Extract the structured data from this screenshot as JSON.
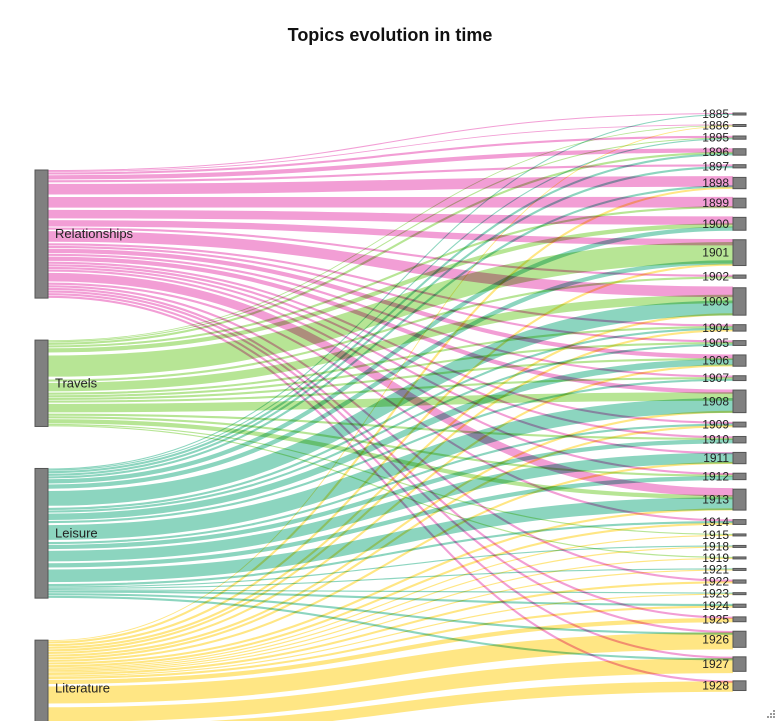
{
  "chart_data": {
    "type": "sankey",
    "title": "Topics evolution in time",
    "sources": [
      {
        "name": "Relationships",
        "color": "#e84fb3"
      },
      {
        "name": "Travels",
        "color": "#7ccf3e"
      },
      {
        "name": "Leisure",
        "color": "#2eb38a"
      },
      {
        "name": "Literature",
        "color": "#ffd21f"
      }
    ],
    "targets": [
      "1885",
      "1886",
      "1895",
      "1896",
      "1897",
      "1898",
      "1899",
      "1900",
      "1901",
      "1902",
      "1903",
      "1904",
      "1905",
      "1906",
      "1907",
      "1908",
      "1909",
      "1910",
      "1911",
      "1912",
      "1913",
      "1914",
      "1915",
      "1918",
      "1919",
      "1921",
      "1922",
      "1923",
      "1924",
      "1925",
      "1926",
      "1927",
      "1928"
    ],
    "links": [
      {
        "source": "Relationships",
        "target": "1885",
        "value": 0.4
      },
      {
        "source": "Relationships",
        "target": "1886",
        "value": 0.4
      },
      {
        "source": "Relationships",
        "target": "1895",
        "value": 1
      },
      {
        "source": "Relationships",
        "target": "1896",
        "value": 2
      },
      {
        "source": "Relationships",
        "target": "1897",
        "value": 1
      },
      {
        "source": "Relationships",
        "target": "1898",
        "value": 5
      },
      {
        "source": "Relationships",
        "target": "1899",
        "value": 5
      },
      {
        "source": "Relationships",
        "target": "1900",
        "value": 4
      },
      {
        "source": "Relationships",
        "target": "1901",
        "value": 3
      },
      {
        "source": "Relationships",
        "target": "1902",
        "value": 1
      },
      {
        "source": "Relationships",
        "target": "1903",
        "value": 5
      },
      {
        "source": "Relationships",
        "target": "1904",
        "value": 1
      },
      {
        "source": "Relationships",
        "target": "1905",
        "value": 1
      },
      {
        "source": "Relationships",
        "target": "1906",
        "value": 2
      },
      {
        "source": "Relationships",
        "target": "1907",
        "value": 1
      },
      {
        "source": "Relationships",
        "target": "1908",
        "value": 2
      },
      {
        "source": "Relationships",
        "target": "1909",
        "value": 1
      },
      {
        "source": "Relationships",
        "target": "1910",
        "value": 1
      },
      {
        "source": "Relationships",
        "target": "1911",
        "value": 1
      },
      {
        "source": "Relationships",
        "target": "1912",
        "value": 1
      },
      {
        "source": "Relationships",
        "target": "1913",
        "value": 4
      },
      {
        "source": "Relationships",
        "target": "1914",
        "value": 1
      },
      {
        "source": "Relationships",
        "target": "1922",
        "value": 1
      },
      {
        "source": "Relationships",
        "target": "1925",
        "value": 1
      },
      {
        "source": "Relationships",
        "target": "1926",
        "value": 1
      },
      {
        "source": "Relationships",
        "target": "1927",
        "value": 1
      },
      {
        "source": "Relationships",
        "target": "1928",
        "value": 1
      },
      {
        "source": "Travels",
        "target": "1886",
        "value": 0.4
      },
      {
        "source": "Travels",
        "target": "1895",
        "value": 0.5
      },
      {
        "source": "Travels",
        "target": "1896",
        "value": 1
      },
      {
        "source": "Travels",
        "target": "1899",
        "value": 1
      },
      {
        "source": "Travels",
        "target": "1900",
        "value": 2
      },
      {
        "source": "Travels",
        "target": "1901",
        "value": 10
      },
      {
        "source": "Travels",
        "target": "1902",
        "value": 1
      },
      {
        "source": "Travels",
        "target": "1903",
        "value": 4
      },
      {
        "source": "Travels",
        "target": "1904",
        "value": 1
      },
      {
        "source": "Travels",
        "target": "1905",
        "value": 1
      },
      {
        "source": "Travels",
        "target": "1906",
        "value": 1
      },
      {
        "source": "Travels",
        "target": "1907",
        "value": 1
      },
      {
        "source": "Travels",
        "target": "1908",
        "value": 4
      },
      {
        "source": "Travels",
        "target": "1910",
        "value": 1
      },
      {
        "source": "Travels",
        "target": "1912",
        "value": 1
      },
      {
        "source": "Travels",
        "target": "1913",
        "value": 2
      },
      {
        "source": "Travels",
        "target": "1915",
        "value": 0.5
      },
      {
        "source": "Travels",
        "target": "1919",
        "value": 0.5
      },
      {
        "source": "Leisure",
        "target": "1885",
        "value": 0.4
      },
      {
        "source": "Leisure",
        "target": "1895",
        "value": 0.5
      },
      {
        "source": "Leisure",
        "target": "1896",
        "value": 1
      },
      {
        "source": "Leisure",
        "target": "1897",
        "value": 1
      },
      {
        "source": "Leisure",
        "target": "1898",
        "value": 1
      },
      {
        "source": "Leisure",
        "target": "1900",
        "value": 2
      },
      {
        "source": "Leisure",
        "target": "1901",
        "value": 2
      },
      {
        "source": "Leisure",
        "target": "1903",
        "value": 7
      },
      {
        "source": "Leisure",
        "target": "1904",
        "value": 1
      },
      {
        "source": "Leisure",
        "target": "1905",
        "value": 1
      },
      {
        "source": "Leisure",
        "target": "1906",
        "value": 3
      },
      {
        "source": "Leisure",
        "target": "1907",
        "value": 1
      },
      {
        "source": "Leisure",
        "target": "1908",
        "value": 7
      },
      {
        "source": "Leisure",
        "target": "1909",
        "value": 1
      },
      {
        "source": "Leisure",
        "target": "1910",
        "value": 2
      },
      {
        "source": "Leisure",
        "target": "1911",
        "value": 5
      },
      {
        "source": "Leisure",
        "target": "1912",
        "value": 2
      },
      {
        "source": "Leisure",
        "target": "1913",
        "value": 6
      },
      {
        "source": "Leisure",
        "target": "1914",
        "value": 1
      },
      {
        "source": "Leisure",
        "target": "1918",
        "value": 0.5
      },
      {
        "source": "Leisure",
        "target": "1921",
        "value": 0.5
      },
      {
        "source": "Leisure",
        "target": "1923",
        "value": 0.5
      },
      {
        "source": "Leisure",
        "target": "1924",
        "value": 1
      },
      {
        "source": "Leisure",
        "target": "1926",
        "value": 1
      },
      {
        "source": "Leisure",
        "target": "1927",
        "value": 1
      },
      {
        "source": "Literature",
        "target": "1886",
        "value": 0.4
      },
      {
        "source": "Literature",
        "target": "1898",
        "value": 1
      },
      {
        "source": "Literature",
        "target": "1901",
        "value": 1
      },
      {
        "source": "Literature",
        "target": "1903",
        "value": 1
      },
      {
        "source": "Literature",
        "target": "1904",
        "value": 1
      },
      {
        "source": "Literature",
        "target": "1906",
        "value": 1
      },
      {
        "source": "Literature",
        "target": "1908",
        "value": 1
      },
      {
        "source": "Literature",
        "target": "1909",
        "value": 1
      },
      {
        "source": "Literature",
        "target": "1911",
        "value": 1
      },
      {
        "source": "Literature",
        "target": "1913",
        "value": 1
      },
      {
        "source": "Literature",
        "target": "1914",
        "value": 1
      },
      {
        "source": "Literature",
        "target": "1915",
        "value": 0.5
      },
      {
        "source": "Literature",
        "target": "1918",
        "value": 0.5
      },
      {
        "source": "Literature",
        "target": "1919",
        "value": 0.5
      },
      {
        "source": "Literature",
        "target": "1921",
        "value": 0.5
      },
      {
        "source": "Literature",
        "target": "1922",
        "value": 1
      },
      {
        "source": "Literature",
        "target": "1923",
        "value": 0.5
      },
      {
        "source": "Literature",
        "target": "1924",
        "value": 1
      },
      {
        "source": "Literature",
        "target": "1925",
        "value": 2
      },
      {
        "source": "Literature",
        "target": "1926",
        "value": 8
      },
      {
        "source": "Literature",
        "target": "1927",
        "value": 7
      },
      {
        "source": "Literature",
        "target": "1928",
        "value": 5
      }
    ]
  }
}
